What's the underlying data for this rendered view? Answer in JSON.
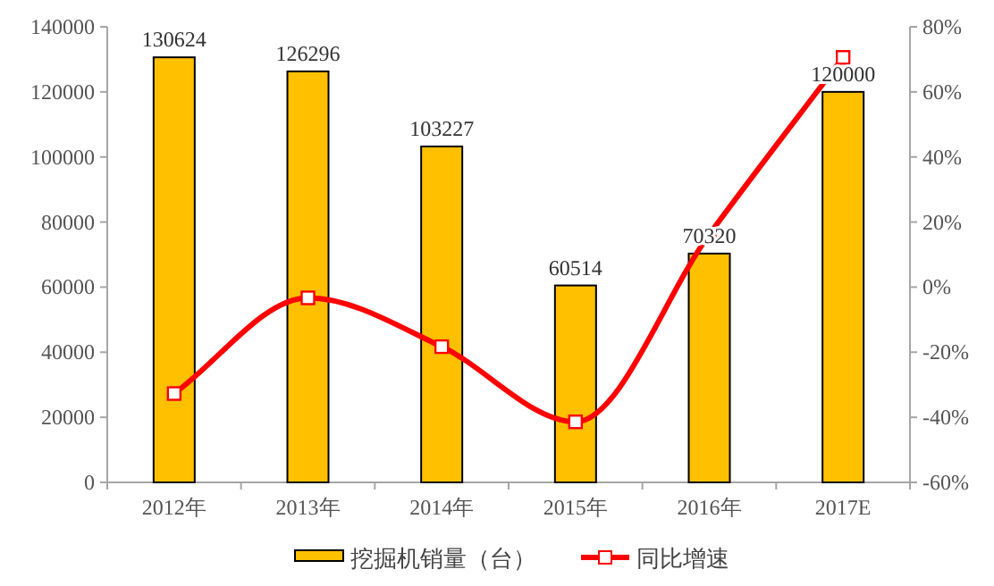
{
  "chart_data": {
    "type": "bar",
    "categories": [
      "2012年",
      "2013年",
      "2014年",
      "2015年",
      "2016年",
      "2017E"
    ],
    "series": [
      {
        "name": "挖掘机销量（台）",
        "color": "#ffc000",
        "values": [
          130624,
          126296,
          103227,
          60514,
          70320,
          120000
        ],
        "value_labels": [
          "130624",
          "126296",
          "103227",
          "60514",
          "70320",
          "120000"
        ]
      },
      {
        "name": "同比增速",
        "type": "line",
        "axis": "y2",
        "color": "#ff0000",
        "marker": "square",
        "values": [
          -32.7,
          -3.3,
          -18.3,
          -41.4,
          16.2,
          70.6
        ]
      }
    ],
    "ylim": [
      0,
      140000
    ],
    "yticks": [
      0,
      20000,
      40000,
      60000,
      80000,
      100000,
      120000,
      140000
    ],
    "y2lim": [
      -60,
      80
    ],
    "y2ticks": [
      {
        "value": -60,
        "label": "-60%"
      },
      {
        "value": -40,
        "label": "-40%"
      },
      {
        "value": -20,
        "label": "-20%"
      },
      {
        "value": 0,
        "label": "0%"
      },
      {
        "value": 20,
        "label": "20%"
      },
      {
        "value": 40,
        "label": "40%"
      },
      {
        "value": 60,
        "label": "60%"
      },
      {
        "value": 80,
        "label": "80%"
      }
    ],
    "legend": "bottom",
    "grid": false
  }
}
